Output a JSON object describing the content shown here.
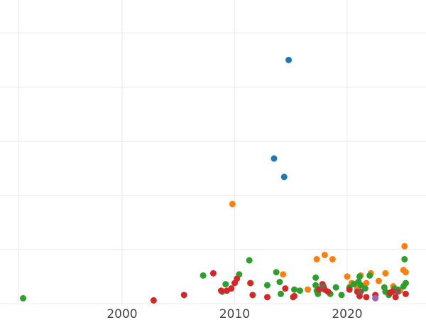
{
  "chart_data": {
    "type": "scatter",
    "title": "",
    "xlabel": "",
    "ylabel": "",
    "xlim": [
      1990,
      2027
    ],
    "ylim": [
      0,
      28
    ],
    "x_ticks": [
      2000,
      2010,
      2020
    ],
    "x_tick_labels": [
      "2000",
      "2010",
      "2020"
    ],
    "y_grid": [
      0,
      5,
      10,
      15,
      20,
      25
    ],
    "grid": true,
    "legend": "none",
    "series": [
      {
        "color": "#1f77b4",
        "points": [
          [
            2014.8,
            22.5
          ],
          [
            2013.5,
            13.4
          ],
          [
            2014.4,
            11.7
          ]
        ]
      },
      {
        "color": "#ff7f0e",
        "points": [
          [
            2009.8,
            9.2
          ],
          [
            2014.3,
            2.7
          ],
          [
            2016.5,
            1.3
          ],
          [
            2017.3,
            4.1
          ],
          [
            2018.0,
            4.5
          ],
          [
            2018.7,
            4.1
          ],
          [
            2019.0,
            1.5
          ],
          [
            2020.0,
            2.5
          ],
          [
            2020.4,
            1.9
          ],
          [
            2020.9,
            1.4
          ],
          [
            2021.2,
            2.6
          ],
          [
            2021.7,
            1.9
          ],
          [
            2022.1,
            2.8
          ],
          [
            2022.8,
            2.1
          ],
          [
            2023.4,
            2.8
          ],
          [
            2024.1,
            1.6
          ],
          [
            2024.7,
            1.2
          ],
          [
            2025.0,
            3.1
          ],
          [
            2025.1,
            5.3
          ],
          [
            2025.2,
            2.9
          ]
        ]
      },
      {
        "color": "#2ca02c",
        "points": [
          [
            1991.2,
            0.5
          ],
          [
            2007.2,
            2.6
          ],
          [
            2008.9,
            1.1
          ],
          [
            2009.2,
            1.8
          ],
          [
            2010.4,
            2.7
          ],
          [
            2011.3,
            4.0
          ],
          [
            2012.9,
            1.7
          ],
          [
            2013.7,
            2.9
          ],
          [
            2014.0,
            2.0
          ],
          [
            2014.1,
            0.9
          ],
          [
            2015.3,
            1.3
          ],
          [
            2015.8,
            1.2
          ],
          [
            2017.2,
            2.4
          ],
          [
            2017.2,
            1.7
          ],
          [
            2017.3,
            1.2
          ],
          [
            2017.4,
            0.9
          ],
          [
            2017.9,
            1.6
          ],
          [
            2018.5,
            0.9
          ],
          [
            2019.0,
            1.5
          ],
          [
            2019.5,
            0.8
          ],
          [
            2020.2,
            1.5
          ],
          [
            2020.6,
            1.8
          ],
          [
            2021.0,
            2.0
          ],
          [
            2021.1,
            2.5
          ],
          [
            2021.2,
            1.7
          ],
          [
            2021.6,
            1.4
          ],
          [
            2022.0,
            2.6
          ],
          [
            2023.3,
            1.5
          ],
          [
            2023.4,
            1.1
          ],
          [
            2023.7,
            0.8
          ],
          [
            2024.2,
            1.4
          ],
          [
            2024.5,
            1.3
          ],
          [
            2025.0,
            1.6
          ],
          [
            2025.1,
            4.1
          ],
          [
            2025.2,
            1.9
          ]
        ]
      },
      {
        "color": "#d62728",
        "points": [
          [
            2002.8,
            0.3
          ],
          [
            2005.5,
            0.8
          ],
          [
            2008.1,
            2.8
          ],
          [
            2008.8,
            1.2
          ],
          [
            2009.3,
            1.2
          ],
          [
            2009.7,
            1.4
          ],
          [
            2010.0,
            1.9
          ],
          [
            2010.2,
            2.3
          ],
          [
            2011.4,
            1.9
          ],
          [
            2011.6,
            0.8
          ],
          [
            2012.9,
            0.6
          ],
          [
            2014.5,
            1.4
          ],
          [
            2015.2,
            0.6
          ],
          [
            2015.3,
            0.7
          ],
          [
            2017.5,
            1.3
          ],
          [
            2017.8,
            1.8
          ],
          [
            2018.0,
            1.3
          ],
          [
            2018.3,
            1.1
          ],
          [
            2020.2,
            1.3
          ],
          [
            2020.9,
            1.1
          ],
          [
            2021.1,
            0.7
          ],
          [
            2021.7,
            0.6
          ],
          [
            2022.5,
            0.8
          ],
          [
            2023.8,
            1.0
          ],
          [
            2024.0,
            1.1
          ],
          [
            2024.3,
            0.6
          ],
          [
            2025.2,
            0.9
          ]
        ]
      },
      {
        "color": "#9467bd",
        "points": [
          [
            2022.5,
            0.5
          ]
        ]
      },
      {
        "color": "#8c564b",
        "points": [
          [
            2017.8,
            1.6
          ],
          [
            2021.2,
            1.1
          ],
          [
            2024.5,
            1.1
          ]
        ]
      }
    ]
  }
}
